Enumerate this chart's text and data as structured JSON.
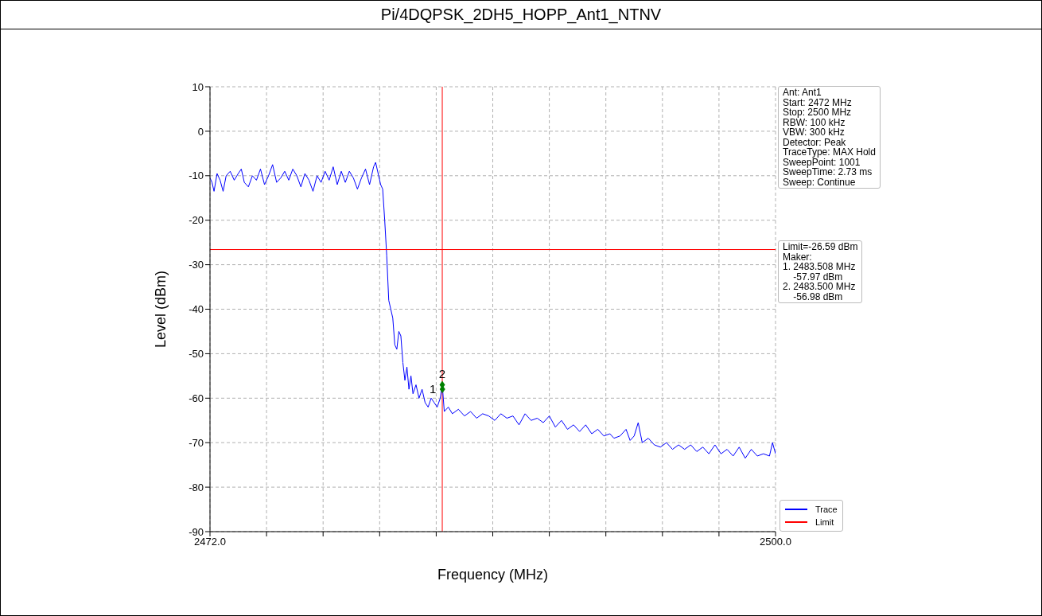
{
  "chart_data": {
    "type": "line",
    "title": "Pi/4DQPSK_2DH5_HOPP_Ant1_NTNV",
    "xlabel": "Frequency (MHz)",
    "ylabel": "Level (dBm)",
    "xlim": [
      2472,
      2500
    ],
    "ylim": [
      -90,
      10
    ],
    "xticks": [
      {
        "value": 2472,
        "label": "2472.0"
      },
      {
        "value": 2474.8,
        "label": null
      },
      {
        "value": 2477.6,
        "label": null
      },
      {
        "value": 2480.4,
        "label": null
      },
      {
        "value": 2483.2,
        "label": null
      },
      {
        "value": 2486,
        "label": null
      },
      {
        "value": 2488.8,
        "label": null
      },
      {
        "value": 2491.6,
        "label": null
      },
      {
        "value": 2494.4,
        "label": null
      },
      {
        "value": 2497.2,
        "label": null
      },
      {
        "value": 2500,
        "label": "2500.0"
      }
    ],
    "yticks": [
      -90,
      -80,
      -70,
      -60,
      -50,
      -40,
      -30,
      -20,
      -10,
      0,
      10
    ],
    "grid": true,
    "legend": "bottom right",
    "series": [
      {
        "name": "Trace",
        "color": "#0000ff",
        "marker": "none",
        "x": [
          2472.0,
          2472.1,
          2472.2,
          2472.35,
          2472.5,
          2472.65,
          2472.8,
          2473.0,
          2473.2,
          2473.4,
          2473.55,
          2473.7,
          2473.9,
          2474.1,
          2474.3,
          2474.5,
          2474.7,
          2474.9,
          2475.1,
          2475.3,
          2475.5,
          2475.7,
          2475.9,
          2476.1,
          2476.3,
          2476.5,
          2476.7,
          2476.9,
          2477.1,
          2477.3,
          2477.5,
          2477.7,
          2477.9,
          2478.1,
          2478.3,
          2478.5,
          2478.7,
          2478.9,
          2479.1,
          2479.3,
          2479.5,
          2479.7,
          2479.9,
          2480.1,
          2480.2,
          2480.35,
          2480.45,
          2480.55,
          2480.65,
          2480.75,
          2480.85,
          2480.95,
          2481.05,
          2481.15,
          2481.25,
          2481.35,
          2481.45,
          2481.55,
          2481.65,
          2481.75,
          2481.85,
          2481.95,
          2482.05,
          2482.2,
          2482.35,
          2482.5,
          2482.65,
          2482.8,
          2482.95,
          2483.1,
          2483.25,
          2483.4,
          2483.5,
          2483.6,
          2483.8,
          2484.0,
          2484.3,
          2484.6,
          2484.9,
          2485.2,
          2485.5,
          2485.8,
          2486.1,
          2486.4,
          2486.7,
          2487.0,
          2487.3,
          2487.6,
          2487.9,
          2488.2,
          2488.5,
          2488.8,
          2489.1,
          2489.4,
          2489.7,
          2490.0,
          2490.3,
          2490.6,
          2490.9,
          2491.2,
          2491.5,
          2491.8,
          2492.0,
          2492.3,
          2492.6,
          2492.8,
          2493.0,
          2493.2,
          2493.4,
          2493.7,
          2494.0,
          2494.3,
          2494.6,
          2494.9,
          2495.2,
          2495.5,
          2495.8,
          2496.1,
          2496.4,
          2496.7,
          2497.0,
          2497.3,
          2497.6,
          2497.9,
          2498.2,
          2498.5,
          2498.8,
          2499.1,
          2499.4,
          2499.7,
          2499.85,
          2500.0
        ],
        "values": [
          -10.5,
          -11.5,
          -13.5,
          -9.5,
          -11,
          -13.5,
          -10,
          -9,
          -11,
          -9.5,
          -8.5,
          -11.5,
          -12.5,
          -10,
          -11,
          -8.5,
          -12,
          -10,
          -7.5,
          -11.5,
          -10.5,
          -9,
          -11,
          -8.5,
          -10,
          -12.5,
          -9.5,
          -11,
          -13.5,
          -10,
          -11.5,
          -9,
          -11,
          -8,
          -12,
          -9,
          -11.5,
          -9,
          -10.5,
          -13,
          -10.5,
          -8.5,
          -12,
          -8,
          -7,
          -10,
          -12,
          -13,
          -20,
          -28,
          -38,
          -40,
          -42,
          -48,
          -49,
          -45,
          -46,
          -52,
          -56,
          -53,
          -58,
          -55,
          -59,
          -57,
          -60,
          -58,
          -61,
          -62,
          -60,
          -61,
          -62,
          -60,
          -57,
          -63,
          -62,
          -63.5,
          -62.5,
          -64,
          -63,
          -64.5,
          -63.5,
          -64,
          -65,
          -63.5,
          -64.5,
          -64,
          -66,
          -63.5,
          -65,
          -64.5,
          -65.5,
          -64,
          -66.5,
          -65,
          -67,
          -66,
          -67.5,
          -66,
          -68,
          -67,
          -68.5,
          -68,
          -69,
          -68.5,
          -67,
          -69.5,
          -68.5,
          -65.5,
          -70,
          -69,
          -70.5,
          -71,
          -70,
          -71.5,
          -70.5,
          -71.5,
          -70.5,
          -72,
          -71,
          -72.5,
          -70.5,
          -72.5,
          -71.5,
          -73,
          -71,
          -73.5,
          -71.5,
          -73,
          -72.5,
          -73,
          -70,
          -72.5
        ]
      },
      {
        "name": "Limit",
        "type": "line",
        "color": "#ff0000",
        "marker": "none",
        "x": [
          2472,
          2500
        ],
        "values": [
          -26.59,
          -26.59
        ]
      },
      {
        "type": "scatter",
        "color": "#008000",
        "marker": "diamond",
        "x": [
          2483.508,
          2483.5
        ],
        "values": [
          -57.97,
          -56.98
        ]
      }
    ],
    "ref_lines": [
      {
        "axis": "x",
        "value": 2483.5,
        "color": "#ff0000"
      }
    ],
    "annotations": [
      {
        "text": "1",
        "x": 2483.508,
        "y": -57.97
      },
      {
        "text": "2",
        "x": 2483.5,
        "y": -56.98
      },
      "Ant: Ant1\nStart: 2472 MHz\nStop: 2500 MHz\nRBW: 100 kHz\nVBW: 300 kHz\nDetector: Peak\nTraceType: MAX Hold\nSweepPoint: 1001\nSweepTime: 2.73 ms\nSweep: Continue",
      "Limit=-26.59 dBm\nMaker:\n1. 2483.508 MHz\n    -57.97 dBm\n2. 2483.500 MHz\n    -56.98 dBm"
    ]
  }
}
